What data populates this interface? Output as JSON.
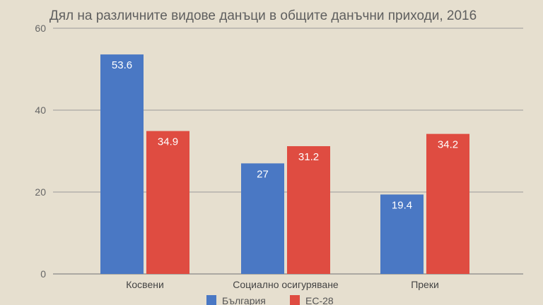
{
  "chart_data": {
    "type": "bar",
    "title": "Дял на различните видове данъци в общите данъчни приходи, 2016",
    "xlabel": "",
    "ylabel": "",
    "ylim": [
      0,
      60
    ],
    "y_ticks": [
      0,
      20,
      40,
      60
    ],
    "grid": true,
    "legend_position": "bottom",
    "categories": [
      "Косвени",
      "Социално осигуряване",
      "Преки"
    ],
    "series": [
      {
        "name": "България",
        "color": "#4a78c4",
        "values": [
          53.6,
          27,
          19.4
        ],
        "labels": [
          "53.6",
          "27",
          "19.4"
        ]
      },
      {
        "name": "ЕС-28",
        "color": "#df4c41",
        "values": [
          34.9,
          31.2,
          34.2
        ],
        "labels": [
          "34.9",
          "31.2",
          "34.2"
        ]
      }
    ]
  }
}
